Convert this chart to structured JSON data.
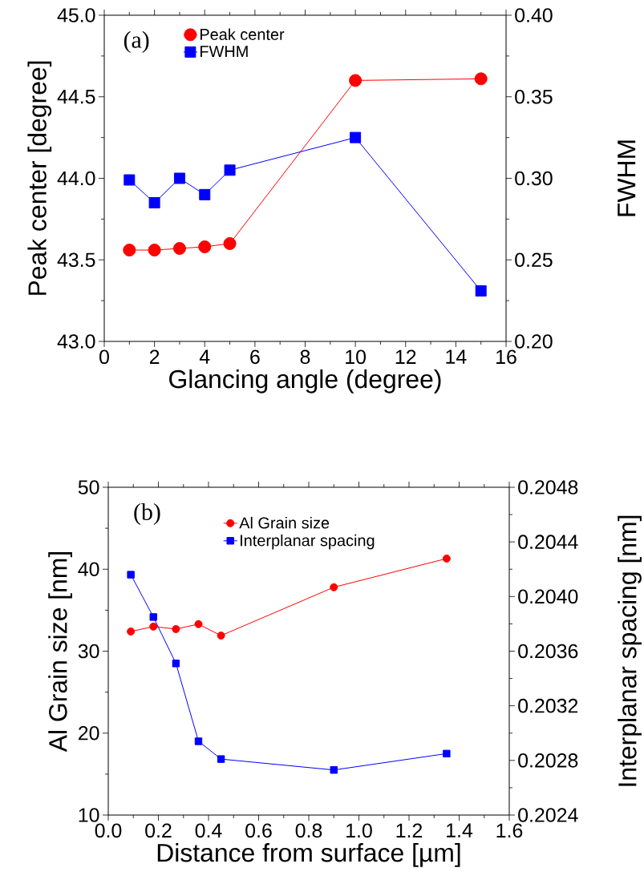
{
  "chart_data": [
    {
      "type": "line",
      "xlabel": "Glancing angle (degree)",
      "ylabel": "Peak center [degree]",
      "y2label": "FWHM",
      "annotations": [
        "(a)"
      ],
      "x": [
        1,
        2,
        3,
        4,
        5,
        10,
        15
      ],
      "series": [
        {
          "name": "Peak center",
          "color": "#ff0000",
          "marker": "circle",
          "values": [
            43.56,
            43.56,
            43.57,
            43.58,
            43.6,
            44.6,
            44.61
          ]
        },
        {
          "name": "FWHM",
          "color": "#0000ff",
          "marker": "square",
          "axis": "y2",
          "values": [
            0.299,
            0.285,
            0.3,
            0.29,
            0.305,
            0.325,
            0.231
          ]
        }
      ],
      "xlim": [
        0,
        16
      ],
      "xticks": [
        0,
        2,
        4,
        6,
        8,
        10,
        12,
        14,
        16
      ],
      "ylim": [
        43.0,
        45.0
      ],
      "yticks": [
        {
          "value": 43.0,
          "label": "43.0"
        },
        {
          "value": 43.5,
          "label": "43.5"
        },
        {
          "value": 44.0,
          "label": "44.0"
        },
        {
          "value": 44.5,
          "label": "44.5"
        },
        {
          "value": 45.0,
          "label": "45.0"
        }
      ],
      "y2lim": [
        0.2,
        0.4
      ],
      "y2ticks": [
        {
          "value": 0.2,
          "label": "0.20"
        },
        {
          "value": 0.25,
          "label": "0.25"
        },
        {
          "value": 0.3,
          "label": "0.30"
        },
        {
          "value": 0.35,
          "label": "0.35"
        },
        {
          "value": 0.4,
          "label": "0.40"
        }
      ],
      "legend": "top left",
      "line_style": "solid"
    },
    {
      "type": "line",
      "xlabel": "Distance from surface [µm]",
      "ylabel": "Al Grain size [nm]",
      "y2label": "Interplanar spacing [nm]",
      "annotations": [
        "(b)"
      ],
      "x": [
        0.09,
        0.18,
        0.27,
        0.36,
        0.45,
        0.9,
        1.35
      ],
      "series": [
        {
          "name": "Al Grain size",
          "color": "#ff0000",
          "marker": "circle",
          "values": [
            32.4,
            33.0,
            32.7,
            33.3,
            31.9,
            37.8,
            41.3
          ]
        },
        {
          "name": "Interplanar spacing",
          "color": "#0000ff",
          "marker": "square",
          "axis": "y2",
          "values": [
            0.20416,
            0.20385,
            0.20351,
            0.20294,
            0.20281,
            0.20273,
            0.20285
          ]
        }
      ],
      "xlim": [
        0,
        1.6
      ],
      "xticks": [
        {
          "value": 0,
          "label": "0.0"
        },
        0.2,
        0.4,
        0.6,
        0.8,
        {
          "value": 1,
          "label": "1.0"
        },
        1.2,
        1.4,
        1.6
      ],
      "ylim": [
        10,
        50
      ],
      "yticks": [
        10,
        20,
        30,
        40,
        50
      ],
      "y2lim": [
        0.2024,
        0.2048
      ],
      "y2ticks": [
        0.2024,
        0.2028,
        0.2032,
        0.2036,
        {
          "value": 0.204,
          "label": "0.2040"
        },
        0.2044,
        0.2048
      ],
      "legend": "top left",
      "line_style": "solid"
    }
  ]
}
